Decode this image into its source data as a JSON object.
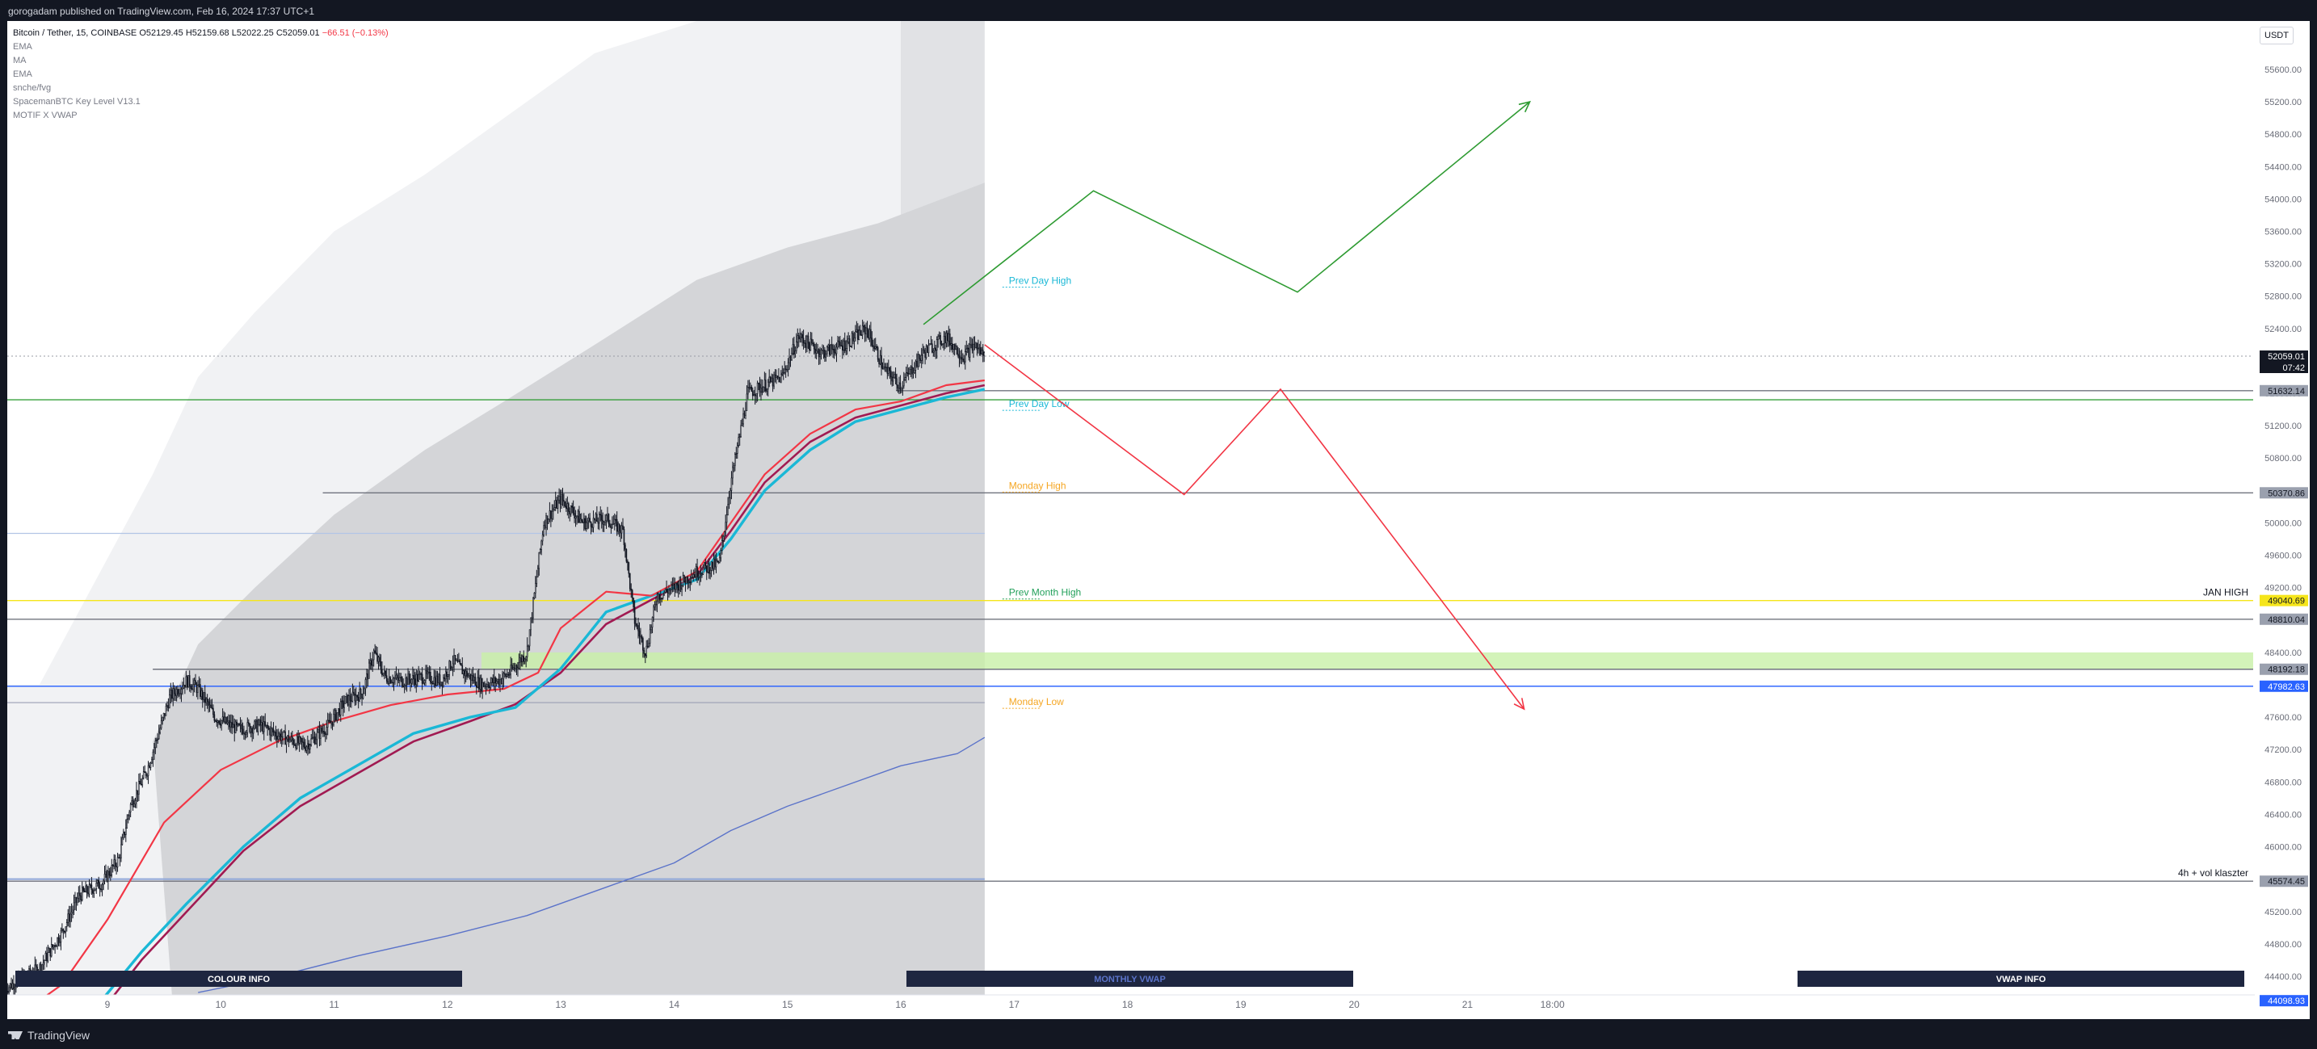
{
  "header": {
    "publish_line": "gorogadam published on TradingView.com, Feb 16, 2024 17:37 UTC+1"
  },
  "legend": {
    "symbol": "Bitcoin / Tether, 15, COINBASE",
    "open_label": "O",
    "open": "52129.45",
    "high_label": "H",
    "high": "52159.68",
    "low_label": "L",
    "low": "52022.25",
    "close_label": "C",
    "close": "52059.01",
    "change": "−66.51 (−0.13%)",
    "indicators": [
      "EMA",
      "MA",
      "EMA",
      "snche/fvg",
      "SpacemanBTC Key Level V13.1",
      "MOTIF X VWAP"
    ]
  },
  "currency": "USDT",
  "footer": {
    "brand": "TradingView"
  },
  "colors": {
    "background": "#ffffff",
    "frame": "#131722",
    "candle": "#131722",
    "ema_fast": "#f23645",
    "ema_slow": "#a11a52",
    "ma": "#1ab8d6",
    "vwap": "#5b73c9",
    "band_dark": "#d4d5d8",
    "band_light": "#f1f2f4",
    "projection_up": "#2e9b32",
    "projection_down": "#f23645",
    "prev_day": "#1ab8d6",
    "monday": "#f5a623",
    "prev_month": "#22a05a",
    "jan_high": "#f5e51a",
    "level_gray": "#6a6d78",
    "level_blue": "#2962ff",
    "fvg_zone": "#c8f0a8"
  },
  "chart_data": {
    "type": "candlestick",
    "symbol": "Bitcoin / Tether",
    "exchange": "COINBASE",
    "interval": "15",
    "ylim": [
      44200,
      55900
    ],
    "price_ticks": [
      44400,
      44800,
      45200,
      45600,
      46000,
      46400,
      46800,
      47200,
      47600,
      48000,
      48400,
      48800,
      49200,
      49600,
      50000,
      50400,
      50800,
      51200,
      51600,
      52000,
      52400,
      52800,
      53200,
      53600,
      54000,
      54400,
      54800,
      55200,
      55600
    ],
    "price_tick_labels": [
      "44400.00",
      "44800.00",
      "45200.00",
      "45600.00",
      "46000.00",
      "46400.00",
      "46800.00",
      "47200.00",
      "47600.00",
      "48000.00",
      "48400.00",
      "48800.00",
      "49200.00",
      "49600.00",
      "50000.00",
      "50400.00",
      "50800.00",
      "51200.00",
      "51600.00",
      "52000.00",
      "52400.00",
      "52800.00",
      "53200.00",
      "53600.00",
      "54000.00",
      "54400.00",
      "54800.00",
      "55200.00",
      "55600.00"
    ],
    "time_ticks": [
      {
        "day": 9,
        "label": "9"
      },
      {
        "day": 10,
        "label": "10"
      },
      {
        "day": 11,
        "label": "11"
      },
      {
        "day": 12,
        "label": "12"
      },
      {
        "day": 13,
        "label": "13"
      },
      {
        "day": 14,
        "label": "14"
      },
      {
        "day": 15,
        "label": "15"
      },
      {
        "day": 16,
        "label": "16"
      },
      {
        "day": 17,
        "label": "17"
      },
      {
        "day": 18,
        "label": "18"
      },
      {
        "day": 19,
        "label": "19"
      },
      {
        "day": 20,
        "label": "20"
      },
      {
        "day": 21,
        "label": "21"
      },
      {
        "day": 21.75,
        "label": "18:00"
      }
    ],
    "xlim": [
      8.1,
      27.9
    ],
    "last_bar_day": 16.74,
    "price_path": [
      [
        8.1,
        44250
      ],
      [
        8.4,
        44500
      ],
      [
        8.6,
        44950
      ],
      [
        8.75,
        45400
      ],
      [
        8.95,
        45550
      ],
      [
        9.1,
        45850
      ],
      [
        9.2,
        46500
      ],
      [
        9.35,
        46950
      ],
      [
        9.55,
        47850
      ],
      [
        9.7,
        48050
      ],
      [
        9.8,
        47950
      ],
      [
        9.95,
        47600
      ],
      [
        10.15,
        47450
      ],
      [
        10.35,
        47500
      ],
      [
        10.55,
        47350
      ],
      [
        10.75,
        47250
      ],
      [
        10.95,
        47500
      ],
      [
        11.1,
        47800
      ],
      [
        11.25,
        47900
      ],
      [
        11.35,
        48400
      ],
      [
        11.45,
        48100
      ],
      [
        11.6,
        48050
      ],
      [
        11.8,
        48100
      ],
      [
        11.95,
        48050
      ],
      [
        12.05,
        48300
      ],
      [
        12.15,
        48150
      ],
      [
        12.3,
        48000
      ],
      [
        12.45,
        48050
      ],
      [
        12.55,
        48150
      ],
      [
        12.7,
        48400
      ],
      [
        12.85,
        50000
      ],
      [
        13.0,
        50300
      ],
      [
        13.2,
        50000
      ],
      [
        13.4,
        50050
      ],
      [
        13.55,
        49900
      ],
      [
        13.65,
        48800
      ],
      [
        13.75,
        48400
      ],
      [
        13.85,
        49100
      ],
      [
        14.0,
        49200
      ],
      [
        14.2,
        49400
      ],
      [
        14.4,
        49500
      ],
      [
        14.5,
        50500
      ],
      [
        14.65,
        51600
      ],
      [
        14.8,
        51700
      ],
      [
        14.95,
        51800
      ],
      [
        15.1,
        52300
      ],
      [
        15.3,
        52100
      ],
      [
        15.5,
        52200
      ],
      [
        15.7,
        52400
      ],
      [
        15.85,
        51900
      ],
      [
        16.0,
        51700
      ],
      [
        16.2,
        52100
      ],
      [
        16.4,
        52300
      ],
      [
        16.55,
        52050
      ],
      [
        16.65,
        52200
      ],
      [
        16.74,
        52059
      ]
    ],
    "series": [
      {
        "name": "EMA",
        "values": [
          [
            8.1,
            43800
          ],
          [
            8.6,
            44300
          ],
          [
            9.0,
            45100
          ],
          [
            9.5,
            46300
          ],
          [
            10.0,
            46950
          ],
          [
            10.5,
            47300
          ],
          [
            11.0,
            47550
          ],
          [
            11.5,
            47750
          ],
          [
            12.0,
            47880
          ],
          [
            12.5,
            47950
          ],
          [
            12.8,
            48150
          ],
          [
            13.0,
            48700
          ],
          [
            13.4,
            49150
          ],
          [
            13.8,
            49100
          ],
          [
            14.2,
            49400
          ],
          [
            14.5,
            50000
          ],
          [
            14.8,
            50600
          ],
          [
            15.2,
            51100
          ],
          [
            15.6,
            51400
          ],
          [
            16.0,
            51500
          ],
          [
            16.4,
            51700
          ],
          [
            16.74,
            51760
          ]
        ]
      },
      {
        "name": "MA",
        "values": [
          [
            8.8,
            43850
          ],
          [
            9.3,
            44700
          ],
          [
            9.7,
            45300
          ],
          [
            10.2,
            46000
          ],
          [
            10.7,
            46600
          ],
          [
            11.2,
            47000
          ],
          [
            11.7,
            47400
          ],
          [
            12.2,
            47600
          ],
          [
            12.6,
            47720
          ],
          [
            13.0,
            48200
          ],
          [
            13.4,
            48900
          ],
          [
            13.8,
            49100
          ],
          [
            14.2,
            49300
          ],
          [
            14.5,
            49800
          ],
          [
            14.8,
            50400
          ],
          [
            15.2,
            50900
          ],
          [
            15.6,
            51250
          ],
          [
            16.0,
            51400
          ],
          [
            16.4,
            51550
          ],
          [
            16.74,
            51650
          ]
        ]
      },
      {
        "name": "EMA",
        "values": [
          [
            8.8,
            43700
          ],
          [
            9.3,
            44600
          ],
          [
            9.7,
            45200
          ],
          [
            10.2,
            45950
          ],
          [
            10.7,
            46500
          ],
          [
            11.2,
            46900
          ],
          [
            11.7,
            47300
          ],
          [
            12.2,
            47550
          ],
          [
            12.6,
            47760
          ],
          [
            13.0,
            48150
          ],
          [
            13.4,
            48750
          ],
          [
            13.8,
            49050
          ],
          [
            14.2,
            49350
          ],
          [
            14.5,
            49900
          ],
          [
            14.8,
            50500
          ],
          [
            15.2,
            51000
          ],
          [
            15.6,
            51300
          ],
          [
            16.0,
            51450
          ],
          [
            16.4,
            51600
          ],
          [
            16.74,
            51700
          ]
        ]
      },
      {
        "name": "MOTIF X VWAP",
        "values": [
          [
            9.8,
            44200
          ],
          [
            10.5,
            44400
          ],
          [
            11.2,
            44650
          ],
          [
            12.0,
            44900
          ],
          [
            12.7,
            45150
          ],
          [
            13.4,
            45500
          ],
          [
            14.0,
            45800
          ],
          [
            14.5,
            46200
          ],
          [
            15.0,
            46500
          ],
          [
            15.5,
            46750
          ],
          [
            16.0,
            47000
          ],
          [
            16.5,
            47150
          ],
          [
            16.74,
            47350
          ]
        ]
      }
    ],
    "bands": {
      "outer_top": [
        [
          8.4,
          48000
        ],
        [
          9.4,
          50600
        ],
        [
          9.8,
          51800
        ],
        [
          10.3,
          52600
        ],
        [
          11.0,
          53600
        ],
        [
          11.8,
          54300
        ],
        [
          12.5,
          55000
        ],
        [
          13.3,
          55800
        ],
        [
          14.2,
          56400
        ],
        [
          15.0,
          57000
        ],
        [
          16.74,
          57400
        ]
      ],
      "inner_top": [
        [
          9.4,
          47300
        ],
        [
          9.8,
          48500
        ],
        [
          10.3,
          49200
        ],
        [
          11.0,
          50100
        ],
        [
          11.8,
          50900
        ],
        [
          12.5,
          51500
        ],
        [
          13.3,
          52200
        ],
        [
          14.2,
          53000
        ],
        [
          15.0,
          53400
        ],
        [
          15.8,
          53700
        ],
        [
          16.74,
          54200
        ]
      ],
      "inner_bottom": [
        [
          9.6,
          43600
        ],
        [
          10.3,
          44900
        ],
        [
          11.0,
          45700
        ],
        [
          11.8,
          46500
        ],
        [
          12.5,
          47300
        ],
        [
          13.3,
          48300
        ],
        [
          14.2,
          49100
        ],
        [
          15.0,
          49800
        ],
        [
          15.8,
          50300
        ],
        [
          16.74,
          50700
        ]
      ],
      "outer_bottom": [
        [
          10.4,
          42500
        ],
        [
          11.2,
          43200
        ],
        [
          12.0,
          43900
        ],
        [
          12.8,
          44600
        ],
        [
          13.6,
          45300
        ],
        [
          14.4,
          46000
        ],
        [
          15.2,
          46600
        ],
        [
          16.0,
          47000
        ],
        [
          16.74,
          47400
        ]
      ]
    },
    "levels": [
      {
        "price": 52059.01,
        "label": "",
        "tag": "52059.01",
        "countdown": "07:42",
        "kind": "current"
      },
      {
        "price": 51632.14,
        "label": "",
        "tag": "51632.14",
        "kind": "gray"
      },
      {
        "price": 51520,
        "label": "",
        "tag": "",
        "kind": "green"
      },
      {
        "price": 50370.86,
        "label": "",
        "tag": "50370.86",
        "kind": "gray"
      },
      {
        "price": 49040.69,
        "label": "JAN HIGH",
        "tag": "49040.69",
        "kind": "yellow"
      },
      {
        "price": 48810.04,
        "label": "",
        "tag": "48810.04",
        "kind": "gray"
      },
      {
        "price": 48192.18,
        "label": "",
        "tag": "48192.18",
        "kind": "gray"
      },
      {
        "price": 47982.63,
        "label": "",
        "tag": "47982.63",
        "kind": "blue"
      },
      {
        "price": 45574.45,
        "label": "4h + vol klaszter",
        "tag": "45574.45",
        "kind": "gray"
      },
      {
        "price": 44098.93,
        "label": "",
        "tag": "44098.93",
        "kind": "blue"
      }
    ],
    "key_levels": [
      {
        "label": "Prev Day High",
        "price": 52950,
        "kind": "prev_day"
      },
      {
        "label": "Prev Day Low",
        "price": 51430,
        "kind": "prev_day"
      },
      {
        "label": "Monday High",
        "price": 50420,
        "kind": "monday"
      },
      {
        "label": "Prev Month High",
        "price": 49100,
        "kind": "prev_month"
      },
      {
        "label": "Monday Low",
        "price": 47750,
        "kind": "monday"
      }
    ],
    "fvg_zone": [
      48200,
      48400
    ],
    "projection_up": [
      [
        16.2,
        52450
      ],
      [
        17.7,
        54100
      ],
      [
        19.5,
        52850
      ],
      [
        21.55,
        55200
      ]
    ],
    "projection_down": [
      [
        16.74,
        52200
      ],
      [
        18.5,
        50350
      ],
      [
        19.35,
        51650
      ],
      [
        21.5,
        47700
      ]
    ],
    "panels": [
      "COLOUR INFO",
      "MONTHLY VWAP",
      "VWAP INFO"
    ]
  }
}
